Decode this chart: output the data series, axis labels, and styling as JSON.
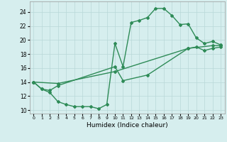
{
  "line1_x": [
    0,
    1,
    2,
    3,
    4,
    5,
    6,
    7,
    8,
    9,
    10,
    11,
    12,
    13,
    14,
    15,
    16,
    17,
    18,
    19,
    20,
    21,
    22,
    23
  ],
  "line1_y": [
    14.0,
    13.0,
    12.5,
    11.2,
    10.8,
    10.5,
    10.5,
    10.5,
    10.2,
    10.8,
    19.5,
    16.2,
    22.5,
    22.8,
    23.2,
    24.5,
    24.5,
    23.5,
    22.2,
    22.3,
    20.3,
    19.5,
    19.8,
    19.3
  ],
  "line2_x": [
    0,
    1,
    2,
    3,
    10,
    11,
    14,
    19,
    20,
    21,
    22,
    23
  ],
  "line2_y": [
    14.0,
    13.0,
    12.8,
    13.5,
    16.2,
    14.2,
    15.0,
    18.8,
    19.0,
    18.5,
    18.8,
    19.0
  ],
  "line3_x": [
    0,
    3,
    10,
    19,
    22,
    23
  ],
  "line3_y": [
    14.0,
    13.8,
    15.5,
    18.8,
    19.2,
    19.2
  ],
  "color": "#2e8b57",
  "bg_color": "#d6eeee",
  "grid_color": "#b8d8d8",
  "xlabel": "Humidex (Indice chaleur)",
  "xlim": [
    -0.5,
    23.5
  ],
  "ylim": [
    9.5,
    25.5
  ],
  "yticks": [
    10,
    12,
    14,
    16,
    18,
    20,
    22,
    24
  ],
  "xticks": [
    0,
    1,
    2,
    3,
    4,
    5,
    6,
    7,
    8,
    9,
    10,
    11,
    12,
    13,
    14,
    15,
    16,
    17,
    18,
    19,
    20,
    21,
    22,
    23
  ],
  "marker": "D",
  "markersize": 2.0,
  "linewidth": 1.0
}
